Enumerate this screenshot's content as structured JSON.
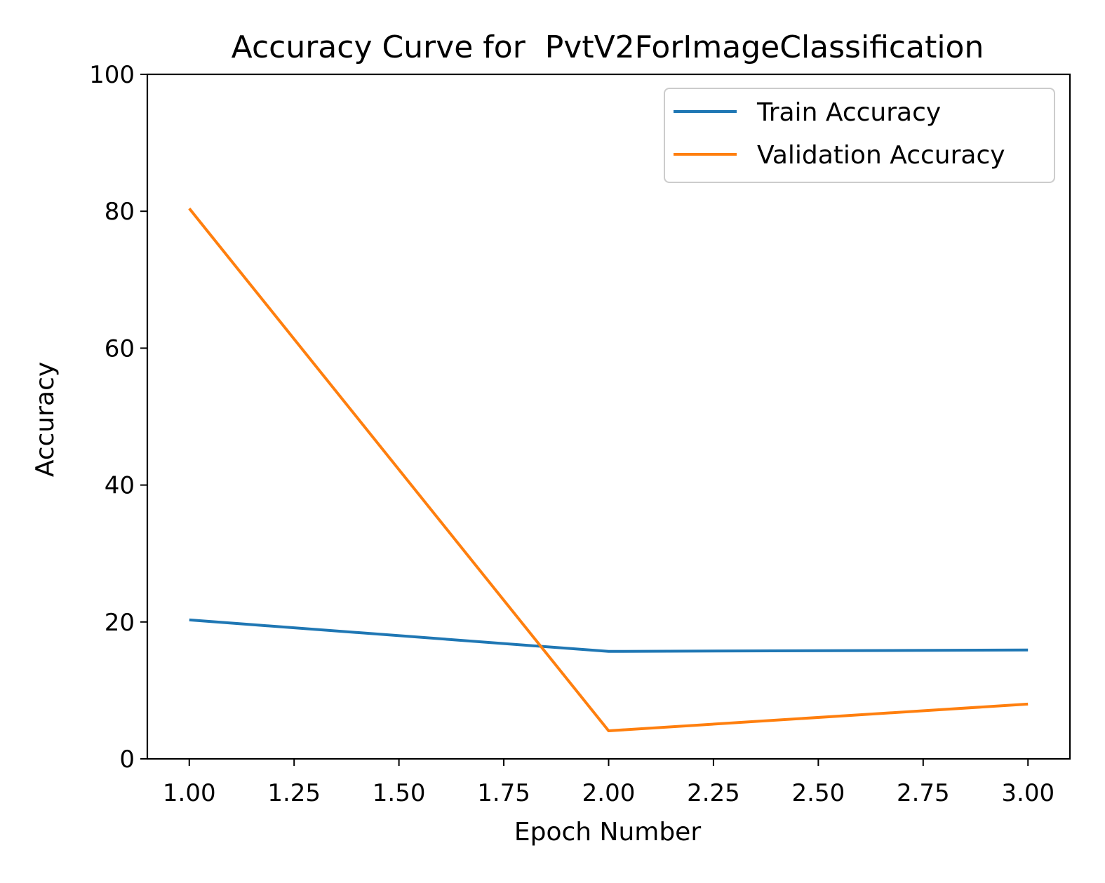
{
  "chart_data": {
    "type": "line",
    "title": "Accuracy Curve for  PvtV2ForImageClassification",
    "xlabel": "Epoch Number",
    "ylabel": "Accuracy",
    "xlim": [
      0.9,
      3.1
    ],
    "ylim": [
      0,
      100
    ],
    "x_ticks": [
      "1.00",
      "1.25",
      "1.50",
      "1.75",
      "2.00",
      "2.25",
      "2.50",
      "2.75",
      "3.00"
    ],
    "y_ticks": [
      "0",
      "20",
      "40",
      "60",
      "80",
      "100"
    ],
    "x": [
      1,
      2,
      3
    ],
    "series": [
      {
        "name": "Train Accuracy",
        "values": [
          20.3,
          15.7,
          15.9
        ],
        "color": "#1f77b4"
      },
      {
        "name": "Validation Accuracy",
        "values": [
          80.4,
          4.1,
          8.0
        ],
        "color": "#ff7f0e"
      }
    ],
    "grid": false,
    "legend_position": "top-right"
  }
}
